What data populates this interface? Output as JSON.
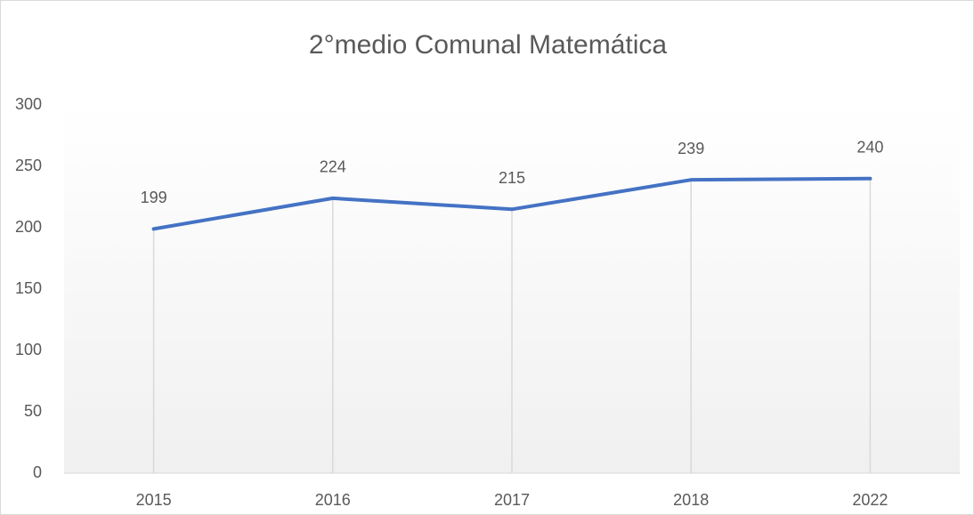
{
  "chart_data": {
    "type": "line",
    "title": "2°medio Comunal Matemática",
    "categories": [
      "2015",
      "2016",
      "2017",
      "2018",
      "2022"
    ],
    "values": [
      199,
      224,
      215,
      239,
      240
    ],
    "color": "#4472c4",
    "ylim": [
      0,
      300
    ],
    "yticks": [
      0,
      50,
      100,
      150,
      200,
      250,
      300
    ],
    "drop_lines": true
  }
}
